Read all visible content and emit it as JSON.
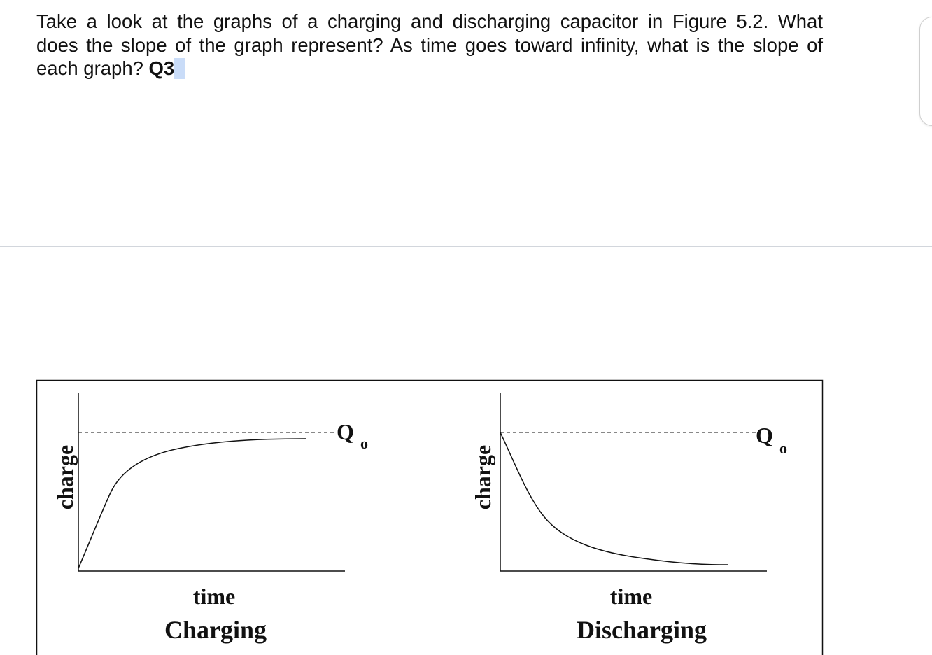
{
  "question": {
    "line1": "Take a look at the graphs of a charging and discharging capacitor in Figure 5.2. What",
    "line2": "does the slope of the graph represent? As time goes toward infinity, what is the slope of",
    "line3": "each graph?",
    "tag": "Q3"
  },
  "figure": {
    "charging": {
      "ylabel": "charge",
      "xlabel": "time",
      "caption": "Charging",
      "asymptote_label": "Q",
      "asymptote_subscript": "o"
    },
    "discharging": {
      "ylabel": "charge",
      "xlabel": "time",
      "caption": "Discharging",
      "asymptote_label": "Q",
      "asymptote_subscript": "o"
    }
  }
}
